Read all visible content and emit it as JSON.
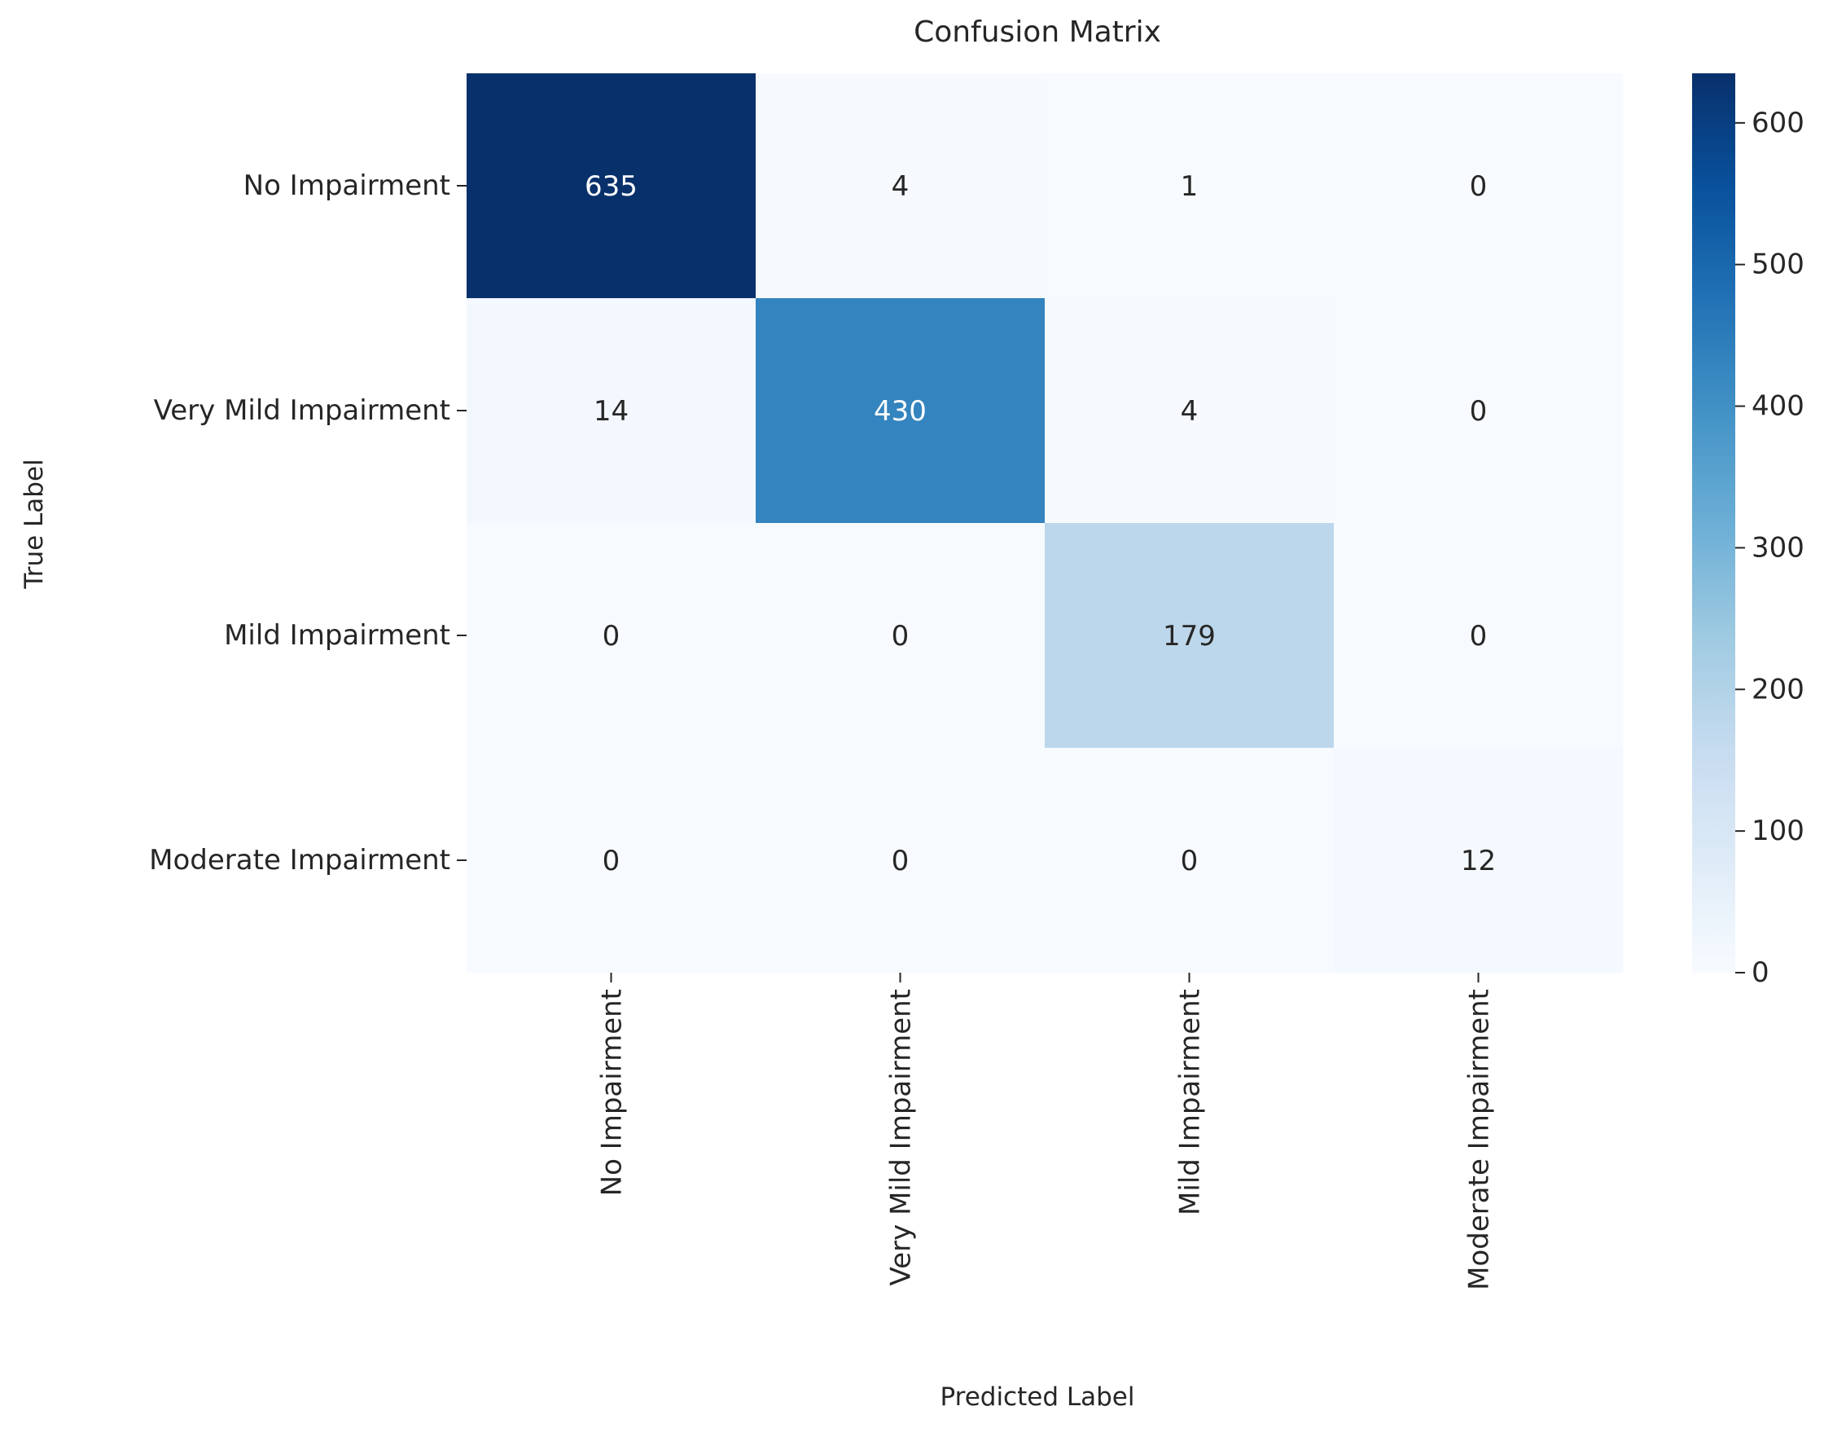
{
  "chart_data": {
    "type": "heatmap",
    "title": "Confusion Matrix",
    "xlabel": "Predicted Label",
    "ylabel": "True Label",
    "x_categories": [
      "No Impairment",
      "Very Mild Impairment",
      "Mild Impairment",
      "Moderate Impairment"
    ],
    "y_categories": [
      "No Impairment",
      "Very Mild Impairment",
      "Mild Impairment",
      "Moderate Impairment"
    ],
    "matrix": [
      [
        635,
        4,
        1,
        0
      ],
      [
        14,
        430,
        4,
        0
      ],
      [
        0,
        0,
        179,
        0
      ],
      [
        0,
        0,
        0,
        12
      ]
    ],
    "colormap": "Blues",
    "colorbar": {
      "min": 0,
      "max": 635,
      "ticks": [
        0,
        100,
        200,
        300,
        400,
        500,
        600
      ]
    },
    "colors": {
      "low": "#f7fbff",
      "high": "#08306b",
      "text_dark": "#262626",
      "text_light": "#ffffff"
    }
  }
}
